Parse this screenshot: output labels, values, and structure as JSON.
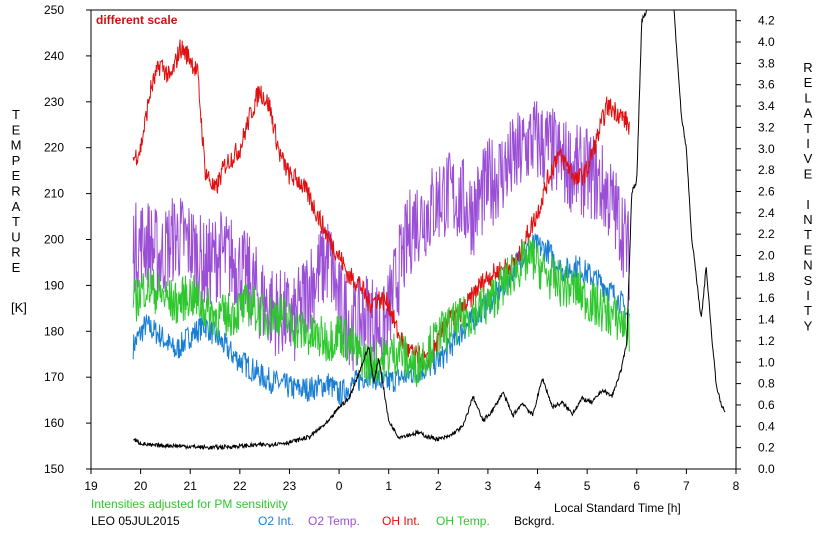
{
  "chart_data": {
    "type": "line",
    "annotation": "different scale",
    "footer_note": "Intensities adjusted for PM sensitivity",
    "station": "LEO 05JUL2015",
    "xlabel": "Local Standard Time [h]",
    "ylabel_left_letters": [
      "T",
      "E",
      "M",
      "P",
      "E",
      "R",
      "A",
      "T",
      "U",
      "R",
      "E"
    ],
    "ylabel_left_unit": "[K]",
    "ylabel_right_letters": [
      "R",
      "E",
      "L",
      "A",
      "T",
      "I",
      "V",
      "E",
      " ",
      "I",
      "N",
      "T",
      "E",
      "N",
      "S",
      "I",
      "T",
      "Y"
    ],
    "x_axis": {
      "range": [
        19,
        32
      ],
      "ticks": [
        19,
        20,
        21,
        22,
        23,
        24,
        25,
        26,
        27,
        28,
        29,
        30,
        31,
        32
      ],
      "tick_labels": [
        "19",
        "20",
        "21",
        "22",
        "23",
        "0",
        "1",
        "2",
        "3",
        "4",
        "5",
        "6",
        "7",
        "8"
      ]
    },
    "y_left": {
      "range": [
        150,
        250
      ],
      "ticks": [
        150,
        160,
        170,
        180,
        190,
        200,
        210,
        220,
        230,
        240,
        250
      ]
    },
    "y_right": {
      "range": [
        0,
        4.3
      ],
      "ticks": [
        0.0,
        0.2,
        0.4,
        0.6,
        0.8,
        1.0,
        1.2,
        1.4,
        1.6,
        1.8,
        2.0,
        2.2,
        2.4,
        2.6,
        2.8,
        3.0,
        3.2,
        3.4,
        3.6,
        3.8,
        4.0,
        4.2
      ]
    },
    "series": [
      {
        "name": "O2 Int.",
        "color": "#1a7fd4",
        "axis": "right",
        "x": [
          19.85,
          20.1,
          20.4,
          20.7,
          21.0,
          21.3,
          21.6,
          21.9,
          22.2,
          22.5,
          22.8,
          23.1,
          23.4,
          23.8,
          24.0,
          24.3,
          24.6,
          24.9,
          25.2,
          25.5,
          25.8,
          26.1,
          26.4,
          26.7,
          27.0,
          27.3,
          27.6,
          27.9,
          28.2,
          28.5,
          28.8,
          29.1,
          29.4,
          29.7,
          29.85
        ],
        "values": [
          1.15,
          1.35,
          1.25,
          1.1,
          1.25,
          1.35,
          1.2,
          1.05,
          0.95,
          0.85,
          0.8,
          0.75,
          0.75,
          0.8,
          0.7,
          0.8,
          0.9,
          0.8,
          0.85,
          0.9,
          0.95,
          1.05,
          1.25,
          1.4,
          1.55,
          1.7,
          1.95,
          2.1,
          2.05,
          1.85,
          1.9,
          1.8,
          1.7,
          1.55,
          1.4
        ],
        "noise": 0.12
      },
      {
        "name": "O2 Temp.",
        "color": "#9b4fd6",
        "axis": "left",
        "x": [
          19.85,
          20.1,
          20.4,
          20.7,
          21.0,
          21.3,
          21.6,
          21.9,
          22.2,
          22.5,
          22.8,
          23.1,
          23.4,
          23.8,
          24.0,
          24.3,
          24.6,
          24.9,
          25.2,
          25.5,
          25.8,
          26.1,
          26.4,
          26.7,
          27.0,
          27.3,
          27.6,
          27.9,
          28.2,
          28.5,
          28.8,
          29.1,
          29.4,
          29.7,
          29.85
        ],
        "values": [
          198,
          200,
          196,
          201,
          199,
          194,
          197,
          195,
          191,
          186,
          184,
          182,
          190,
          196,
          186,
          181,
          184,
          180,
          193,
          204,
          206,
          210,
          209,
          206,
          212,
          215,
          218,
          222,
          220,
          217,
          215,
          214,
          210,
          203,
          196
        ],
        "noise": 10
      },
      {
        "name": "OH Int.",
        "color": "#e01010",
        "axis": "right",
        "x": [
          19.85,
          20.0,
          20.2,
          20.4,
          20.6,
          20.8,
          21.0,
          21.15,
          21.3,
          21.5,
          21.7,
          22.0,
          22.2,
          22.4,
          22.6,
          22.8,
          23.0,
          23.2,
          23.4,
          23.6,
          23.8,
          24.0,
          24.2,
          24.4,
          24.6,
          24.8,
          25.0,
          25.2,
          25.4,
          25.6,
          25.8,
          26.0,
          26.2,
          26.4,
          26.6,
          26.8,
          27.0,
          27.2,
          27.4,
          27.6,
          27.8,
          28.0,
          28.2,
          28.4,
          28.6,
          28.8,
          29.0,
          29.2,
          29.4,
          29.6,
          29.8,
          29.85
        ],
        "values": [
          2.9,
          3.0,
          3.55,
          3.8,
          3.65,
          3.95,
          3.85,
          3.7,
          2.8,
          2.6,
          2.85,
          3.0,
          3.3,
          3.55,
          3.4,
          2.95,
          2.75,
          2.7,
          2.55,
          2.35,
          2.15,
          2.0,
          1.8,
          1.75,
          1.55,
          1.6,
          1.55,
          1.25,
          1.1,
          1.05,
          1.0,
          1.2,
          1.4,
          1.45,
          1.55,
          1.7,
          1.8,
          1.85,
          1.9,
          1.95,
          2.2,
          2.4,
          2.7,
          2.95,
          2.85,
          2.7,
          2.8,
          3.1,
          3.4,
          3.35,
          3.25,
          3.2
        ],
        "noise": 0.1
      },
      {
        "name": "OH Temp.",
        "color": "#2ec82e",
        "axis": "left",
        "x": [
          19.85,
          20.1,
          20.4,
          20.7,
          21.0,
          21.3,
          21.6,
          21.9,
          22.2,
          22.5,
          22.8,
          23.1,
          23.4,
          23.8,
          24.0,
          24.3,
          24.6,
          24.9,
          25.2,
          25.5,
          25.8,
          26.1,
          26.4,
          26.7,
          27.0,
          27.3,
          27.6,
          27.9,
          28.2,
          28.5,
          28.8,
          29.1,
          29.4,
          29.7,
          29.85
        ],
        "values": [
          186,
          190,
          188,
          186,
          188,
          185,
          183,
          184,
          186,
          183,
          184,
          181,
          179,
          178,
          180,
          176,
          173,
          174,
          176,
          172,
          176,
          180,
          182,
          184,
          186,
          190,
          194,
          196,
          192,
          190,
          189,
          186,
          184,
          182,
          180
        ],
        "noise": 5
      },
      {
        "name": "Bckgrd.",
        "color": "#000000",
        "axis": "right",
        "x": [
          19.85,
          19.95,
          20.2,
          20.6,
          21.0,
          21.4,
          21.8,
          22.2,
          22.6,
          23.0,
          23.4,
          23.8,
          24.0,
          24.2,
          24.4,
          24.6,
          24.7,
          24.8,
          25.0,
          25.2,
          25.4,
          25.6,
          25.8,
          26.0,
          26.2,
          26.5,
          26.7,
          26.9,
          27.1,
          27.3,
          27.5,
          27.7,
          27.9,
          28.1,
          28.3,
          28.5,
          28.7,
          28.9,
          29.1,
          29.3,
          29.5,
          29.7,
          29.8,
          29.9,
          30.0,
          30.1,
          30.2,
          30.35,
          30.5,
          30.65,
          30.75,
          30.9,
          31.0,
          31.1,
          31.2,
          31.3,
          31.4,
          31.5,
          31.6,
          31.7,
          31.78
        ],
        "values": [
          0.28,
          0.25,
          0.22,
          0.22,
          0.21,
          0.2,
          0.21,
          0.22,
          0.23,
          0.25,
          0.3,
          0.45,
          0.58,
          0.66,
          0.9,
          1.15,
          0.8,
          1.05,
          0.45,
          0.3,
          0.32,
          0.34,
          0.3,
          0.28,
          0.3,
          0.4,
          0.68,
          0.45,
          0.55,
          0.72,
          0.5,
          0.62,
          0.5,
          0.85,
          0.58,
          0.62,
          0.52,
          0.66,
          0.62,
          0.74,
          0.68,
          0.95,
          1.2,
          2.6,
          2.7,
          4.2,
          4.3,
          4.5,
          4.4,
          4.6,
          4.3,
          3.3,
          3.0,
          2.2,
          1.8,
          1.4,
          1.9,
          1.3,
          0.8,
          0.6,
          0.55
        ],
        "noise": 0.02
      }
    ],
    "legend": {
      "placement": "bottom",
      "entries": [
        "O2 Int.",
        "O2 Temp.",
        "OH Int.",
        "OH Temp.",
        "Bckgrd."
      ]
    },
    "grid": false
  }
}
